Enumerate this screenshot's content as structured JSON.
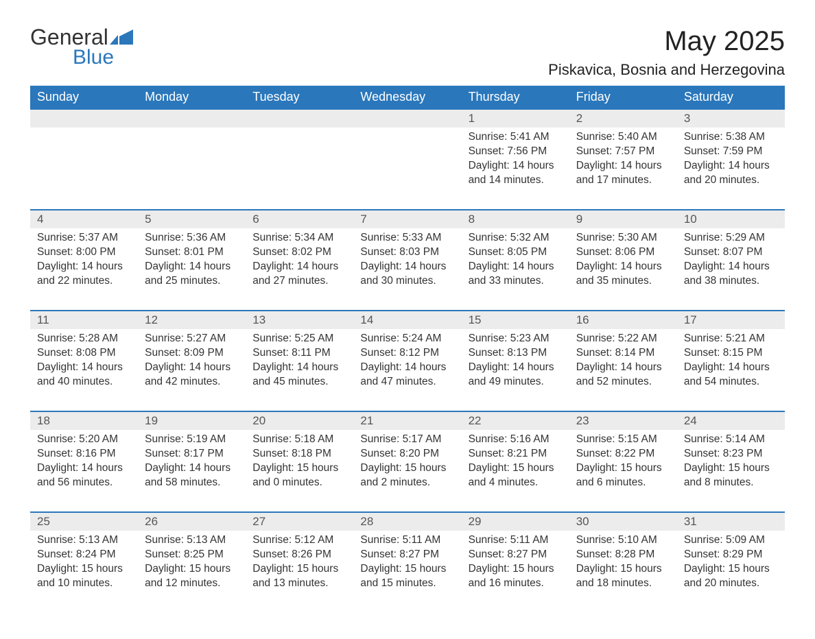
{
  "brand": {
    "word1": "General",
    "word2": "Blue"
  },
  "title": "May 2025",
  "location": "Piskavica, Bosnia and Herzegovina",
  "colors": {
    "accent": "#2a77bb",
    "header_bg": "#2a77bb",
    "header_text": "#ffffff",
    "daynum_bg": "#ececec",
    "body_text": "#333333",
    "page_bg": "#ffffff"
  },
  "columns": [
    "Sunday",
    "Monday",
    "Tuesday",
    "Wednesday",
    "Thursday",
    "Friday",
    "Saturday"
  ],
  "labels": {
    "sunrise": "Sunrise:",
    "sunset": "Sunset:",
    "daylight": "Daylight:"
  },
  "weeks": [
    [
      null,
      null,
      null,
      null,
      {
        "d": "1",
        "sunrise": "5:41 AM",
        "sunset": "7:56 PM",
        "daylight": "14 hours and 14 minutes."
      },
      {
        "d": "2",
        "sunrise": "5:40 AM",
        "sunset": "7:57 PM",
        "daylight": "14 hours and 17 minutes."
      },
      {
        "d": "3",
        "sunrise": "5:38 AM",
        "sunset": "7:59 PM",
        "daylight": "14 hours and 20 minutes."
      }
    ],
    [
      {
        "d": "4",
        "sunrise": "5:37 AM",
        "sunset": "8:00 PM",
        "daylight": "14 hours and 22 minutes."
      },
      {
        "d": "5",
        "sunrise": "5:36 AM",
        "sunset": "8:01 PM",
        "daylight": "14 hours and 25 minutes."
      },
      {
        "d": "6",
        "sunrise": "5:34 AM",
        "sunset": "8:02 PM",
        "daylight": "14 hours and 27 minutes."
      },
      {
        "d": "7",
        "sunrise": "5:33 AM",
        "sunset": "8:03 PM",
        "daylight": "14 hours and 30 minutes."
      },
      {
        "d": "8",
        "sunrise": "5:32 AM",
        "sunset": "8:05 PM",
        "daylight": "14 hours and 33 minutes."
      },
      {
        "d": "9",
        "sunrise": "5:30 AM",
        "sunset": "8:06 PM",
        "daylight": "14 hours and 35 minutes."
      },
      {
        "d": "10",
        "sunrise": "5:29 AM",
        "sunset": "8:07 PM",
        "daylight": "14 hours and 38 minutes."
      }
    ],
    [
      {
        "d": "11",
        "sunrise": "5:28 AM",
        "sunset": "8:08 PM",
        "daylight": "14 hours and 40 minutes."
      },
      {
        "d": "12",
        "sunrise": "5:27 AM",
        "sunset": "8:09 PM",
        "daylight": "14 hours and 42 minutes."
      },
      {
        "d": "13",
        "sunrise": "5:25 AM",
        "sunset": "8:11 PM",
        "daylight": "14 hours and 45 minutes."
      },
      {
        "d": "14",
        "sunrise": "5:24 AM",
        "sunset": "8:12 PM",
        "daylight": "14 hours and 47 minutes."
      },
      {
        "d": "15",
        "sunrise": "5:23 AM",
        "sunset": "8:13 PM",
        "daylight": "14 hours and 49 minutes."
      },
      {
        "d": "16",
        "sunrise": "5:22 AM",
        "sunset": "8:14 PM",
        "daylight": "14 hours and 52 minutes."
      },
      {
        "d": "17",
        "sunrise": "5:21 AM",
        "sunset": "8:15 PM",
        "daylight": "14 hours and 54 minutes."
      }
    ],
    [
      {
        "d": "18",
        "sunrise": "5:20 AM",
        "sunset": "8:16 PM",
        "daylight": "14 hours and 56 minutes."
      },
      {
        "d": "19",
        "sunrise": "5:19 AM",
        "sunset": "8:17 PM",
        "daylight": "14 hours and 58 minutes."
      },
      {
        "d": "20",
        "sunrise": "5:18 AM",
        "sunset": "8:18 PM",
        "daylight": "15 hours and 0 minutes."
      },
      {
        "d": "21",
        "sunrise": "5:17 AM",
        "sunset": "8:20 PM",
        "daylight": "15 hours and 2 minutes."
      },
      {
        "d": "22",
        "sunrise": "5:16 AM",
        "sunset": "8:21 PM",
        "daylight": "15 hours and 4 minutes."
      },
      {
        "d": "23",
        "sunrise": "5:15 AM",
        "sunset": "8:22 PM",
        "daylight": "15 hours and 6 minutes."
      },
      {
        "d": "24",
        "sunrise": "5:14 AM",
        "sunset": "8:23 PM",
        "daylight": "15 hours and 8 minutes."
      }
    ],
    [
      {
        "d": "25",
        "sunrise": "5:13 AM",
        "sunset": "8:24 PM",
        "daylight": "15 hours and 10 minutes."
      },
      {
        "d": "26",
        "sunrise": "5:13 AM",
        "sunset": "8:25 PM",
        "daylight": "15 hours and 12 minutes."
      },
      {
        "d": "27",
        "sunrise": "5:12 AM",
        "sunset": "8:26 PM",
        "daylight": "15 hours and 13 minutes."
      },
      {
        "d": "28",
        "sunrise": "5:11 AM",
        "sunset": "8:27 PM",
        "daylight": "15 hours and 15 minutes."
      },
      {
        "d": "29",
        "sunrise": "5:11 AM",
        "sunset": "8:27 PM",
        "daylight": "15 hours and 16 minutes."
      },
      {
        "d": "30",
        "sunrise": "5:10 AM",
        "sunset": "8:28 PM",
        "daylight": "15 hours and 18 minutes."
      },
      {
        "d": "31",
        "sunrise": "5:09 AM",
        "sunset": "8:29 PM",
        "daylight": "15 hours and 20 minutes."
      }
    ]
  ]
}
